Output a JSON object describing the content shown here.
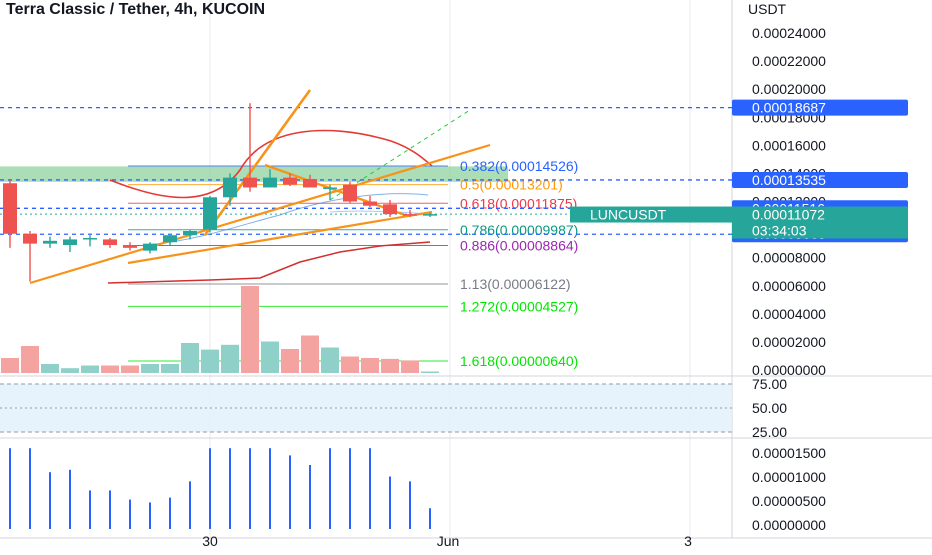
{
  "header": {
    "title": "Terra Classic / Tether, 4h, KUCOIN"
  },
  "price_axis": {
    "unit": "USDT",
    "ticks": [
      "0.00024000",
      "0.00022000",
      "0.00020000",
      "0.00018000",
      "0.00016000",
      "0.00014000",
      "0.00012000",
      "0.00010000",
      "0.00008000",
      "0.00006000",
      "0.00004000",
      "0.00002000",
      "0.00000000"
    ]
  },
  "price_tags": [
    {
      "label": "0.00018687",
      "value": 0.00018687,
      "color": "#2962ff"
    },
    {
      "label": "0.00013535",
      "value": 0.00013535,
      "color": "#2962ff"
    },
    {
      "label": "0.00011516",
      "value": 0.00011516,
      "color": "#2962ff"
    },
    {
      "label": "0.00009669",
      "value": 9.669e-05,
      "color": "#2962ff"
    }
  ],
  "symbol_tag": {
    "symbol": "LUNCUSDT",
    "price": "0.00011072",
    "countdown": "03:34:03",
    "value": 0.00011072,
    "color": "#26a69a"
  },
  "fib_levels": [
    {
      "label": "0.382(0.00014526)",
      "value": 0.00014526,
      "color": "#2962ff"
    },
    {
      "label": "0.5(0.00013201)",
      "value": 0.00013201,
      "color": "#ff9800"
    },
    {
      "label": "0.618(0.00011875)",
      "value": 0.00011875,
      "color": "#f23645"
    },
    {
      "label": "0.786(0.00009987)",
      "value": 9.987e-05,
      "color": "#089981"
    },
    {
      "label": "0.886(0.00008864)",
      "value": 8.864e-05,
      "color": "#9c27b0"
    },
    {
      "label": "1.13(0.00006122)",
      "value": 6.122e-05,
      "color": "#787b86"
    },
    {
      "label": "1.272(0.00004527)",
      "value": 4.527e-05,
      "color": "#00e600"
    },
    {
      "label": "1.618(0.00000640)",
      "value": 6.4e-06,
      "color": "#00e600"
    }
  ],
  "rsi_axis": {
    "ticks": [
      "75.00",
      "50.00",
      "25.00"
    ]
  },
  "bottom_axis": {
    "ticks": [
      "0.00001500",
      "0.00001000",
      "0.00000500",
      "0.00000000"
    ]
  },
  "time_axis": {
    "ticks": [
      "30",
      "Jun",
      "3"
    ]
  },
  "colors": {
    "up": "#26a69a",
    "down": "#ef5350",
    "orange": "#f7931a",
    "vol_up": "#8fd1c8",
    "vol_down": "#f4a3a1",
    "hist": "#2962ff",
    "zone": "#8fd19e"
  },
  "chart_data": {
    "type": "candlestick",
    "title": "Terra Classic / Tether, 4h, KUCOIN",
    "ylabel": "USDT",
    "ylim": [
      0,
      0.00025
    ],
    "candles": [
      {
        "o": 0.000133,
        "h": 0.000136,
        "l": 8.7e-05,
        "c": 9.7e-05
      },
      {
        "o": 9.7e-05,
        "h": 9.9e-05,
        "l": 6.3e-05,
        "c": 9e-05
      },
      {
        "o": 9e-05,
        "h": 9.5e-05,
        "l": 8.7e-05,
        "c": 9.2e-05
      },
      {
        "o": 8.9e-05,
        "h": 9.5e-05,
        "l": 8.4e-05,
        "c": 9.3e-05
      },
      {
        "o": 9.3e-05,
        "h": 9.6e-05,
        "l": 8.8e-05,
        "c": 9.4e-05
      },
      {
        "o": 9.3e-05,
        "h": 9.4e-05,
        "l": 8.7e-05,
        "c": 8.9e-05
      },
      {
        "o": 8.9e-05,
        "h": 9.1e-05,
        "l": 8.5e-05,
        "c": 8.7e-05
      },
      {
        "o": 8.5e-05,
        "h": 9.1e-05,
        "l": 8.3e-05,
        "c": 9e-05
      },
      {
        "o": 9.1e-05,
        "h": 9.7e-05,
        "l": 8.9e-05,
        "c": 9.6e-05
      },
      {
        "o": 9.6e-05,
        "h": 0.0001,
        "l": 9.3e-05,
        "c": 9.9e-05
      },
      {
        "o": 0.0001,
        "h": 0.000124,
        "l": 9.8e-05,
        "c": 0.000123
      },
      {
        "o": 0.000123,
        "h": 0.00014,
        "l": 0.000117,
        "c": 0.000137
      },
      {
        "o": 0.000137,
        "h": 0.00019,
        "l": 0.000127,
        "c": 0.00013
      },
      {
        "o": 0.00013,
        "h": 0.000143,
        "l": 0.00013,
        "c": 0.000137
      },
      {
        "o": 0.000137,
        "h": 0.00014,
        "l": 0.000131,
        "c": 0.000132
      },
      {
        "o": 0.000136,
        "h": 0.000139,
        "l": 0.00013,
        "c": 0.00013
      },
      {
        "o": 0.00013,
        "h": 0.000132,
        "l": 0.000121,
        "c": 0.00013
      },
      {
        "o": 0.000132,
        "h": 0.000134,
        "l": 0.000119,
        "c": 0.00012
      },
      {
        "o": 0.00012,
        "h": 0.000124,
        "l": 0.000116,
        "c": 0.000117
      },
      {
        "o": 0.000118,
        "h": 0.000121,
        "l": 0.000109,
        "c": 0.000111
      },
      {
        "o": 0.000111,
        "h": 0.000114,
        "l": 0.000109,
        "c": 0.00011
      },
      {
        "o": 0.00011,
        "h": 0.000112,
        "l": 0.000109,
        "c": 0.000111
      }
    ],
    "volume": [
      0.5,
      0.9,
      0.3,
      0.16,
      0.25,
      0.25,
      0.25,
      0.3,
      0.3,
      1.0,
      0.78,
      0.94,
      2.9,
      1.05,
      0.8,
      1.25,
      0.85,
      0.55,
      0.5,
      0.47,
      0.42,
      0.05
    ],
    "histogram": [
      1.6e-05,
      1.6e-05,
      1.1e-05,
      1.15e-05,
      7.2e-06,
      7.2e-06,
      5.3e-06,
      4.7e-06,
      5.7e-06,
      9.1e-06,
      1.6e-05,
      1.6e-05,
      1.6e-05,
      1.6e-05,
      1.45e-05,
      1.25e-05,
      1.6e-05,
      1.6e-05,
      1.6e-05,
      1.01e-05,
      9.1e-06,
      3.5e-06
    ]
  }
}
